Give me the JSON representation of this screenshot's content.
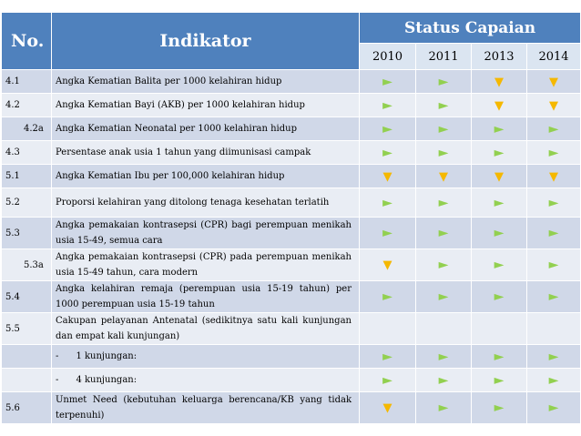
{
  "header": {
    "no": "No.",
    "indikator": "Indikator",
    "status": "Status Capaian",
    "years": [
      "2010",
      "2011",
      "2013",
      "2014"
    ]
  },
  "rows": [
    {
      "no": "4.1",
      "indikator": "Angka Kematian Balita per 1000 kelahiran hidup",
      "status": [
        "up",
        "up",
        "down",
        "down"
      ]
    },
    {
      "no": "4.2",
      "indikator": "Angka Kematian Bayi (AKB) per 1000 kelahiran hidup",
      "status": [
        "up",
        "up",
        "down",
        "down"
      ]
    },
    {
      "no": "4.2a",
      "indikator": "Angka Kematian Neonatal per 1000 kelahiran hidup",
      "status": [
        "up",
        "up",
        "up",
        "up"
      ]
    },
    {
      "no": "4.3",
      "indikator": "Persentase anak usia 1 tahun yang diimunisasi campak",
      "status": [
        "up",
        "up",
        "up",
        "up"
      ]
    },
    {
      "no": "5.1",
      "indikator": "Angka Kematian Ibu per 100,000 kelahiran hidup",
      "status": [
        "down",
        "down",
        "down",
        "down"
      ]
    },
    {
      "no": "5.2",
      "indikator": "Proporsi kelahiran yang ditolong tenaga kesehatan terlatih",
      "status": [
        "up",
        "up",
        "up",
        "up"
      ]
    },
    {
      "no": "5.3",
      "indikator": "Angka pemakaian kontrasepsi (CPR) bagi perempuan menikah usia 15-49, semua cara",
      "status": [
        "up",
        "up",
        "up",
        "up"
      ]
    },
    {
      "no": "5.3a",
      "indikator": "Angka pemakaian kontrasepsi (CPR) pada perempuan menikah usia 15-49 tahun, cara modern",
      "status": [
        "down",
        "up",
        "up",
        "up"
      ]
    },
    {
      "no": "5.4",
      "indikator": "Angka kelahiran remaja (perempuan usia 15-19 tahun) per 1000 perempuan usia 15-19 tahun",
      "status": [
        "up",
        "up",
        "up",
        "up"
      ]
    },
    {
      "no": "5.5",
      "indikator": "Cakupan pelayanan Antenatal (sedikitnya satu kali kunjungan dan empat kali kunjungan)",
      "status": [
        "",
        "",
        "",
        ""
      ]
    },
    {
      "no": "",
      "indikator": "-      1 kunjungan:",
      "status": [
        "up",
        "up",
        "up",
        "up"
      ]
    },
    {
      "no": "",
      "indikator": "-      4 kunjungan:",
      "status": [
        "up",
        "up",
        "up",
        "up"
      ]
    },
    {
      "no": "5.6",
      "indikator": "Unmet Need (kebutuhan keluarga berencana/KB yang tidak terpenuhi)",
      "status": [
        "down",
        "up",
        "up",
        "up"
      ]
    }
  ],
  "icons": {
    "up": "►",
    "down": "▼",
    "up_color": "#92d050",
    "down_color": "#f5b800"
  },
  "colors": {
    "header_bg": "#4f81bd",
    "year_bg": "#dbe5f1",
    "row_dark": "#d0d8e8",
    "row_light": "#e9edf4"
  }
}
